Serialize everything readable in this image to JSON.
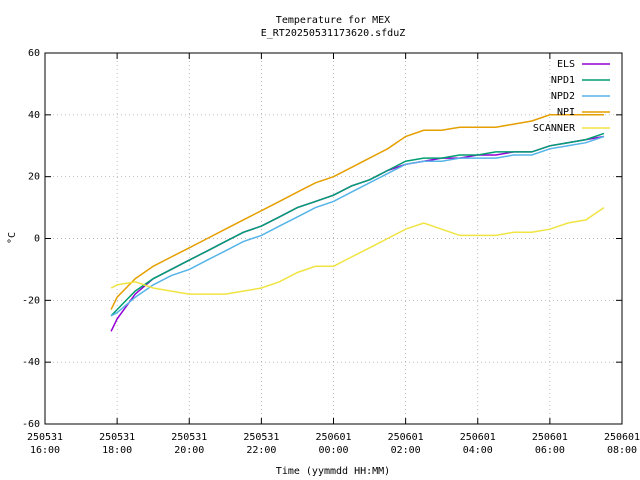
{
  "chart_data": {
    "type": "line",
    "title": "Temperature for MEX",
    "subtitle": "E_RT20250531173620.sfduZ",
    "x_label": "Time (yymmdd HH:MM)",
    "y_label": "°C",
    "x": [
      "250531 17:50",
      "250531 18:00",
      "250531 18:30",
      "250531 19:00",
      "250531 19:30",
      "250531 20:00",
      "250531 20:30",
      "250531 21:00",
      "250531 21:30",
      "250531 22:00",
      "250531 22:30",
      "250531 23:00",
      "250531 23:30",
      "250601 00:00",
      "250601 00:30",
      "250601 01:00",
      "250601 01:30",
      "250601 02:00",
      "250601 02:30",
      "250601 03:00",
      "250601 03:30",
      "250601 04:00",
      "250601 04:30",
      "250601 05:00",
      "250601 05:30",
      "250601 06:00",
      "250601 06:30",
      "250601 07:00",
      "250601 07:30"
    ],
    "series": [
      {
        "name": "ELS",
        "color": "#9400d3",
        "values": [
          -30,
          -26,
          -18,
          -13,
          -10,
          -7,
          -4,
          -1,
          2,
          4,
          7,
          10,
          12,
          14,
          17,
          19,
          22,
          24,
          25,
          26,
          26,
          27,
          27,
          28,
          28,
          30,
          31,
          32,
          33
        ]
      },
      {
        "name": "NPD1",
        "color": "#009e73",
        "values": [
          -25,
          -23,
          -17,
          -13,
          -10,
          -7,
          -4,
          -1,
          2,
          4,
          7,
          10,
          12,
          14,
          17,
          19,
          22,
          25,
          26,
          26,
          27,
          27,
          28,
          28,
          28,
          30,
          31,
          32,
          34
        ]
      },
      {
        "name": "NPD2",
        "color": "#56b4e9",
        "values": [
          -25,
          -24,
          -19,
          -15,
          -12,
          -10,
          -7,
          -4,
          -1,
          1,
          4,
          7,
          10,
          12,
          15,
          18,
          21,
          24,
          25,
          25,
          26,
          26,
          26,
          27,
          27,
          29,
          30,
          31,
          33
        ]
      },
      {
        "name": "NPI",
        "color": "#e69f00",
        "values": [
          -23,
          -19,
          -13,
          -9,
          -6,
          -3,
          0,
          3,
          6,
          9,
          12,
          15,
          18,
          20,
          23,
          26,
          29,
          33,
          35,
          35,
          36,
          36,
          36,
          37,
          38,
          40,
          40,
          40,
          40
        ]
      },
      {
        "name": "SCANNER",
        "color": "#f0e442",
        "values": [
          -16,
          -15,
          -14,
          -16,
          -17,
          -18,
          -18,
          -18,
          -17,
          -16,
          -14,
          -11,
          -9,
          -9,
          -6,
          -3,
          0,
          3,
          5,
          3,
          1,
          1,
          1,
          2,
          2,
          3,
          5,
          6,
          10
        ]
      }
    ],
    "xlim": [
      "250531 16:00",
      "250601 08:00"
    ],
    "xticks": [
      "250531 16:00",
      "250531 18:00",
      "250531 20:00",
      "250531 22:00",
      "250601 00:00",
      "250601 02:00",
      "250601 04:00",
      "250601 06:00",
      "250601 08:00"
    ],
    "ylim": [
      -60,
      60
    ],
    "yticks": [
      -60,
      -40,
      -20,
      0,
      20,
      40,
      60
    ],
    "grid": true,
    "legend": "top-right"
  }
}
